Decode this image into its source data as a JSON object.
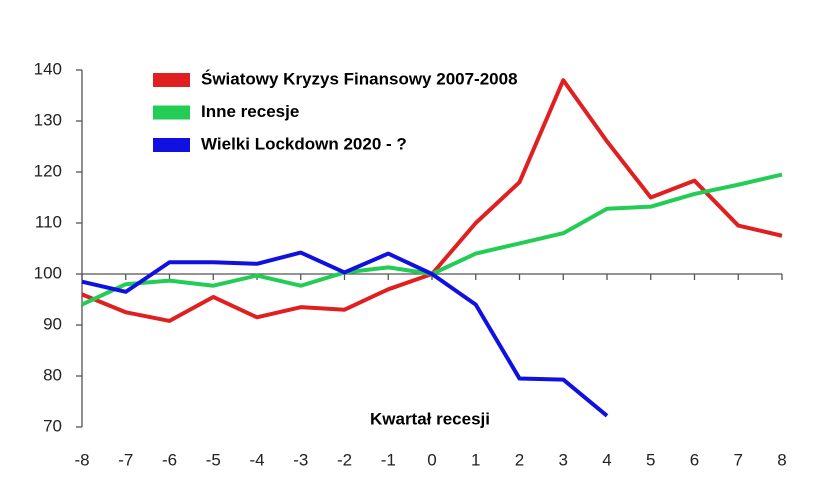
{
  "chart_data": {
    "type": "line",
    "x_label": "Kwartał recesji",
    "x": [
      -8,
      -7,
      -6,
      -5,
      -4,
      -3,
      -2,
      -1,
      0,
      1,
      2,
      3,
      4,
      5,
      6,
      7,
      8
    ],
    "series": [
      {
        "name": "Światowy Kryzys Finansowy 2007-2008",
        "color": "#e02020",
        "values": [
          96,
          92.5,
          90.8,
          95.5,
          91.5,
          93.5,
          93,
          97,
          100,
          110,
          118,
          138,
          126,
          115,
          118.3,
          109.5,
          107.5
        ]
      },
      {
        "name": "Inne recesje",
        "color": "#22cc55",
        "values": [
          94,
          98,
          98.7,
          97.7,
          99.7,
          97.7,
          100.3,
          101.3,
          100,
          104,
          106,
          108,
          112.8,
          113.2,
          115.7,
          117.5,
          119.5
        ]
      },
      {
        "name": "Wielki Lockdown 2020 - ?",
        "color": "#1010e0",
        "values": [
          98.5,
          96.5,
          102.3,
          102.3,
          102,
          104.2,
          100.3,
          104,
          100,
          94,
          79.5,
          79.3,
          72.2,
          null,
          null,
          null,
          null
        ]
      }
    ],
    "xlim": [
      -8,
      8
    ],
    "xticks": [
      -8,
      -7,
      -6,
      -5,
      -4,
      -3,
      -2,
      -1,
      0,
      1,
      2,
      3,
      4,
      5,
      6,
      7,
      8
    ],
    "ylim": [
      70,
      140
    ],
    "yticks": [
      70,
      80,
      90,
      100,
      110,
      120,
      130,
      140
    ],
    "x_axis_at": 100,
    "grid": false,
    "legend": "top-left"
  }
}
